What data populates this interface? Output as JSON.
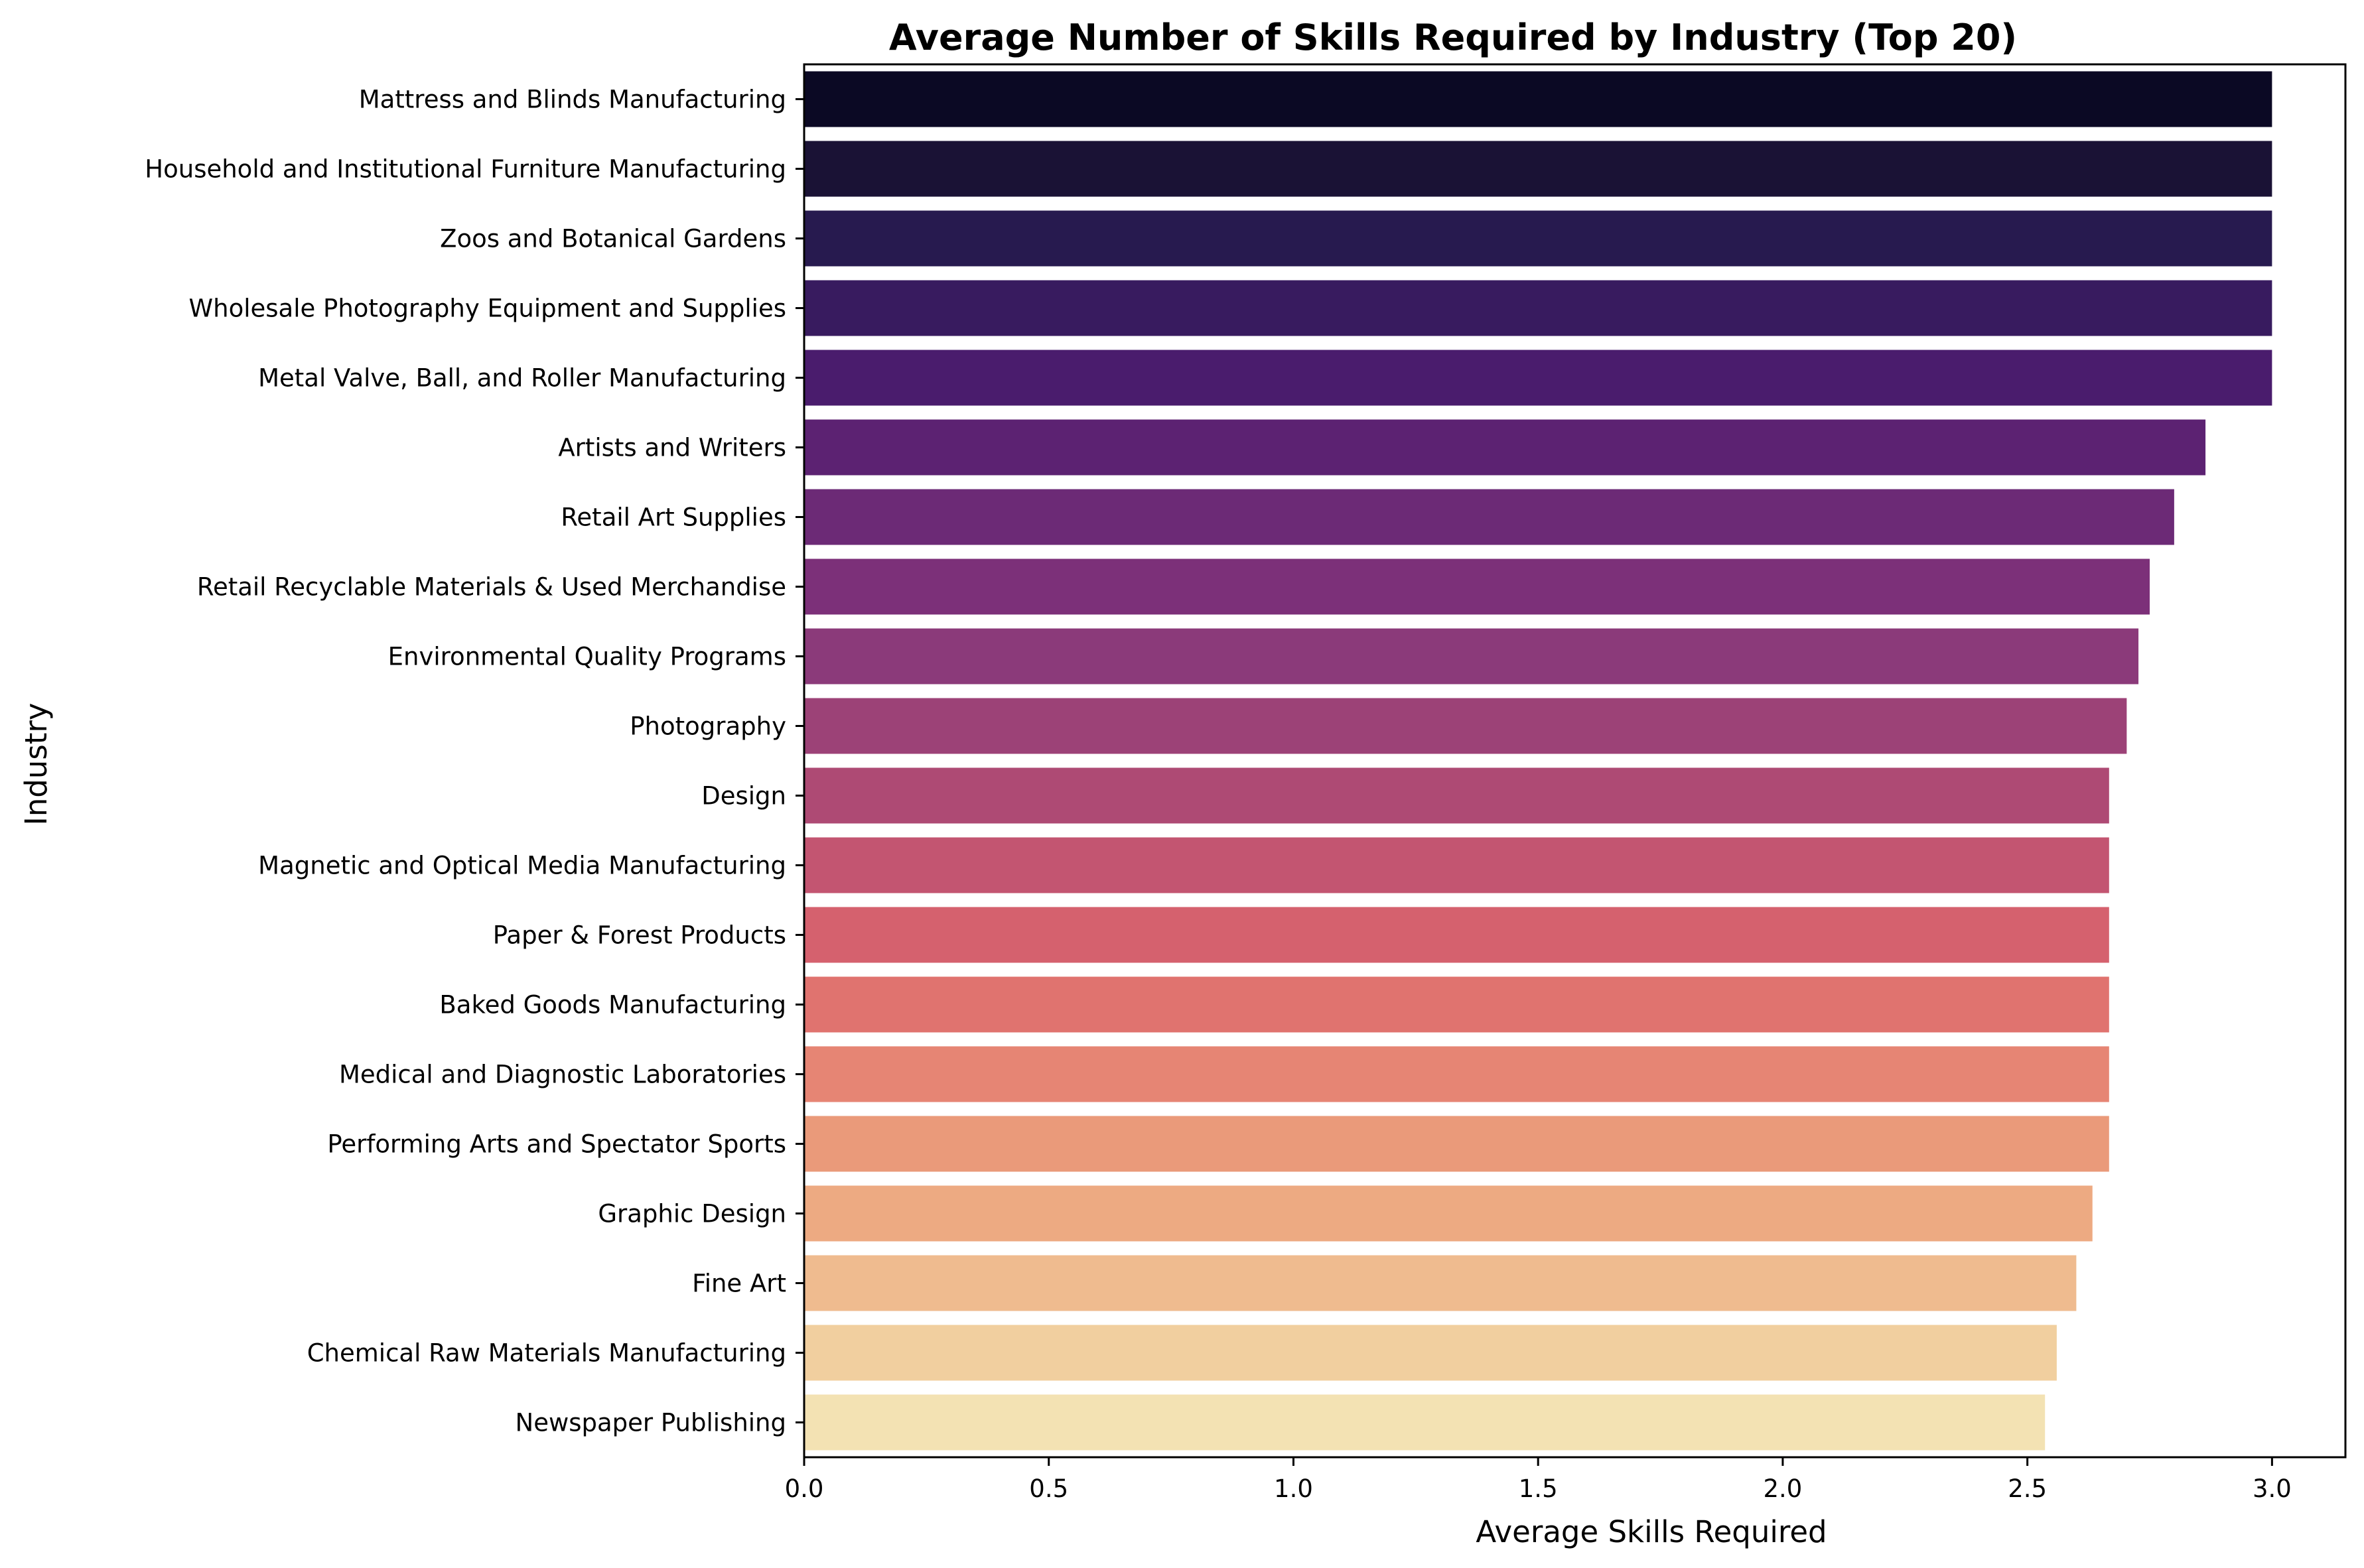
{
  "chart_data": {
    "type": "bar",
    "orientation": "horizontal",
    "title": "Average Number of Skills Required by Industry (Top 20)",
    "xlabel": "Average Skills Required",
    "ylabel": "Industry",
    "xlim": [
      0,
      3.15
    ],
    "x_ticks": [
      "0.0",
      "0.5",
      "1.0",
      "1.5",
      "2.0",
      "2.5",
      "3.0"
    ],
    "grid": false,
    "palette": "magma",
    "categories": [
      "Mattress and Blinds Manufacturing",
      "Household and Institutional Furniture Manufacturing",
      "Zoos and Botanical Gardens",
      "Wholesale Photography Equipment and Supplies",
      "Metal Valve, Ball, and Roller Manufacturing",
      "Artists and Writers",
      "Retail Art Supplies",
      "Retail Recyclable Materials & Used Merchandise",
      "Environmental Quality Programs",
      "Photography",
      "Design",
      "Magnetic and Optical Media Manufacturing",
      "Paper & Forest Products",
      "Baked Goods Manufacturing",
      "Medical and Diagnostic Laboratories",
      "Performing Arts and Spectator Sports",
      "Graphic Design",
      "Fine Art",
      "Chemical Raw Materials Manufacturing",
      "Newspaper Publishing"
    ],
    "values": [
      3.0,
      3.0,
      3.0,
      3.0,
      3.0,
      2.864,
      2.8,
      2.75,
      2.727,
      2.703,
      2.667,
      2.667,
      2.667,
      2.667,
      2.667,
      2.667,
      2.633,
      2.6,
      2.56,
      2.536
    ],
    "colors": [
      "#0b0924",
      "#1a1235",
      "#271a4f",
      "#381b5f",
      "#4a1c6d",
      "#5c2272",
      "#6c2a76",
      "#7c3079",
      "#8b3a7a",
      "#9c4277",
      "#ae4a74",
      "#c35571",
      "#d5616e",
      "#e0736f",
      "#e68574",
      "#ea9a7a",
      "#edaa82",
      "#efbb8f",
      "#f1cf9f",
      "#f3e2b3"
    ]
  }
}
